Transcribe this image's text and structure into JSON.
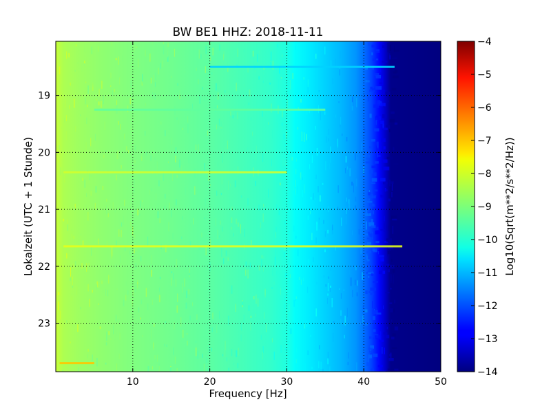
{
  "chart_data": {
    "type": "heatmap",
    "title": "BW BE1 HHZ: 2018-11-11",
    "xlabel": "Frequency [Hz]",
    "ylabel": "Lokalzeit (UTC + 1 Stunde)",
    "xlim": [
      0,
      50
    ],
    "ylim": [
      23.85,
      18.05
    ],
    "x_ticks": [
      10,
      20,
      30,
      40,
      50
    ],
    "y_ticks": [
      19,
      20,
      21,
      22,
      23
    ],
    "grid": true,
    "colormap": "jet",
    "colorbar": {
      "label": "Log10(Sqrt(m**2/s**2/Hz))",
      "range": [
        -14,
        -4
      ],
      "ticks": [
        -4,
        -5,
        -6,
        -7,
        -8,
        -9,
        -10,
        -11,
        -12,
        -13,
        -14
      ]
    },
    "frequency_profile": {
      "frequency_hz": [
        0,
        1,
        3,
        6,
        10,
        15,
        20,
        25,
        28,
        30,
        31,
        33,
        35,
        37,
        39,
        40,
        41,
        42,
        42.8,
        43.5,
        50
      ],
      "log10_value": [
        -8.3,
        -8.55,
        -8.7,
        -8.85,
        -9.0,
        -9.15,
        -9.35,
        -9.6,
        -9.75,
        -9.95,
        -10.2,
        -10.45,
        -10.7,
        -10.95,
        -11.3,
        -11.65,
        -12.1,
        -12.7,
        -13.3,
        -13.9,
        -14.0
      ]
    },
    "horizontal_lines": [
      {
        "time_h": 18.5,
        "freq_start": 20,
        "freq_end": 44,
        "log10_value": -10.7
      },
      {
        "time_h": 19.25,
        "freq_start": 5,
        "freq_end": 35,
        "log10_value": -9.3
      },
      {
        "time_h": 20.35,
        "freq_start": 1,
        "freq_end": 30,
        "log10_value": -8.2
      },
      {
        "time_h": 21.65,
        "freq_start": 1,
        "freq_end": 45,
        "log10_value": -8.0
      },
      {
        "time_h": 23.7,
        "freq_start": 0.5,
        "freq_end": 5,
        "log10_value": -7.2
      }
    ]
  }
}
